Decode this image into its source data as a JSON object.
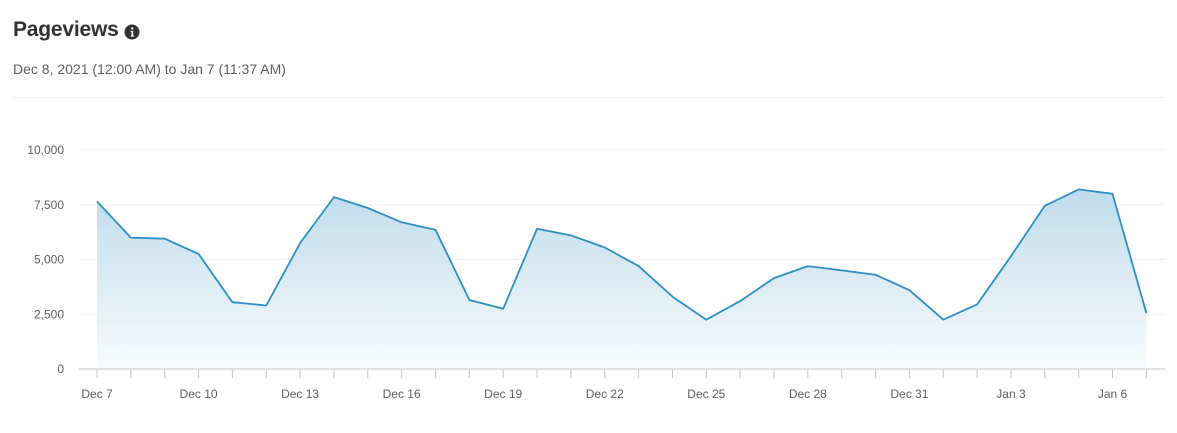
{
  "header": {
    "title": "Pageviews",
    "icon": "info-icon",
    "subtitle": "Dec 8, 2021 (12:00 AM) to Jan 7 (11:37 AM)"
  },
  "colors": {
    "line": "#2d8fc4",
    "area_top": "#bfdcec",
    "area_bottom": "#f7fbfd",
    "grid": "#f0f0f0",
    "axis": "#c8c6c4",
    "text": "#605e5c"
  },
  "chart_data": {
    "type": "area",
    "x": [
      "Dec 7",
      "Dec 8",
      "Dec 9",
      "Dec 10",
      "Dec 11",
      "Dec 12",
      "Dec 13",
      "Dec 14",
      "Dec 15",
      "Dec 16",
      "Dec 17",
      "Dec 18",
      "Dec 19",
      "Dec 20",
      "Dec 21",
      "Dec 22",
      "Dec 23",
      "Dec 24",
      "Dec 25",
      "Dec 26",
      "Dec 27",
      "Dec 28",
      "Dec 29",
      "Dec 30",
      "Dec 31",
      "Jan 1",
      "Jan 2",
      "Jan 3",
      "Jan 4",
      "Jan 5",
      "Jan 6",
      "Jan 7"
    ],
    "x_tick_labels": [
      "Dec 7",
      "Dec 10",
      "Dec 13",
      "Dec 16",
      "Dec 19",
      "Dec 22",
      "Dec 25",
      "Dec 28",
      "Dec 31",
      "Jan 3",
      "Jan 6"
    ],
    "values": [
      7650,
      6000,
      5950,
      5250,
      3050,
      2900,
      5750,
      7850,
      7350,
      6700,
      6350,
      3150,
      2750,
      6400,
      6100,
      5550,
      4700,
      3300,
      2250,
      3100,
      4150,
      4700,
      4500,
      4300,
      3600,
      2250,
      2950,
      5150,
      7450,
      8200,
      8000,
      2550
    ],
    "yticks": [
      0,
      2500,
      5000,
      7500,
      10000
    ],
    "ytick_labels": [
      "0",
      "2,500",
      "5,000",
      "7,500",
      "10,000"
    ],
    "ylim": [
      0,
      10000
    ],
    "grid": true,
    "xlabel": "",
    "ylabel": ""
  }
}
